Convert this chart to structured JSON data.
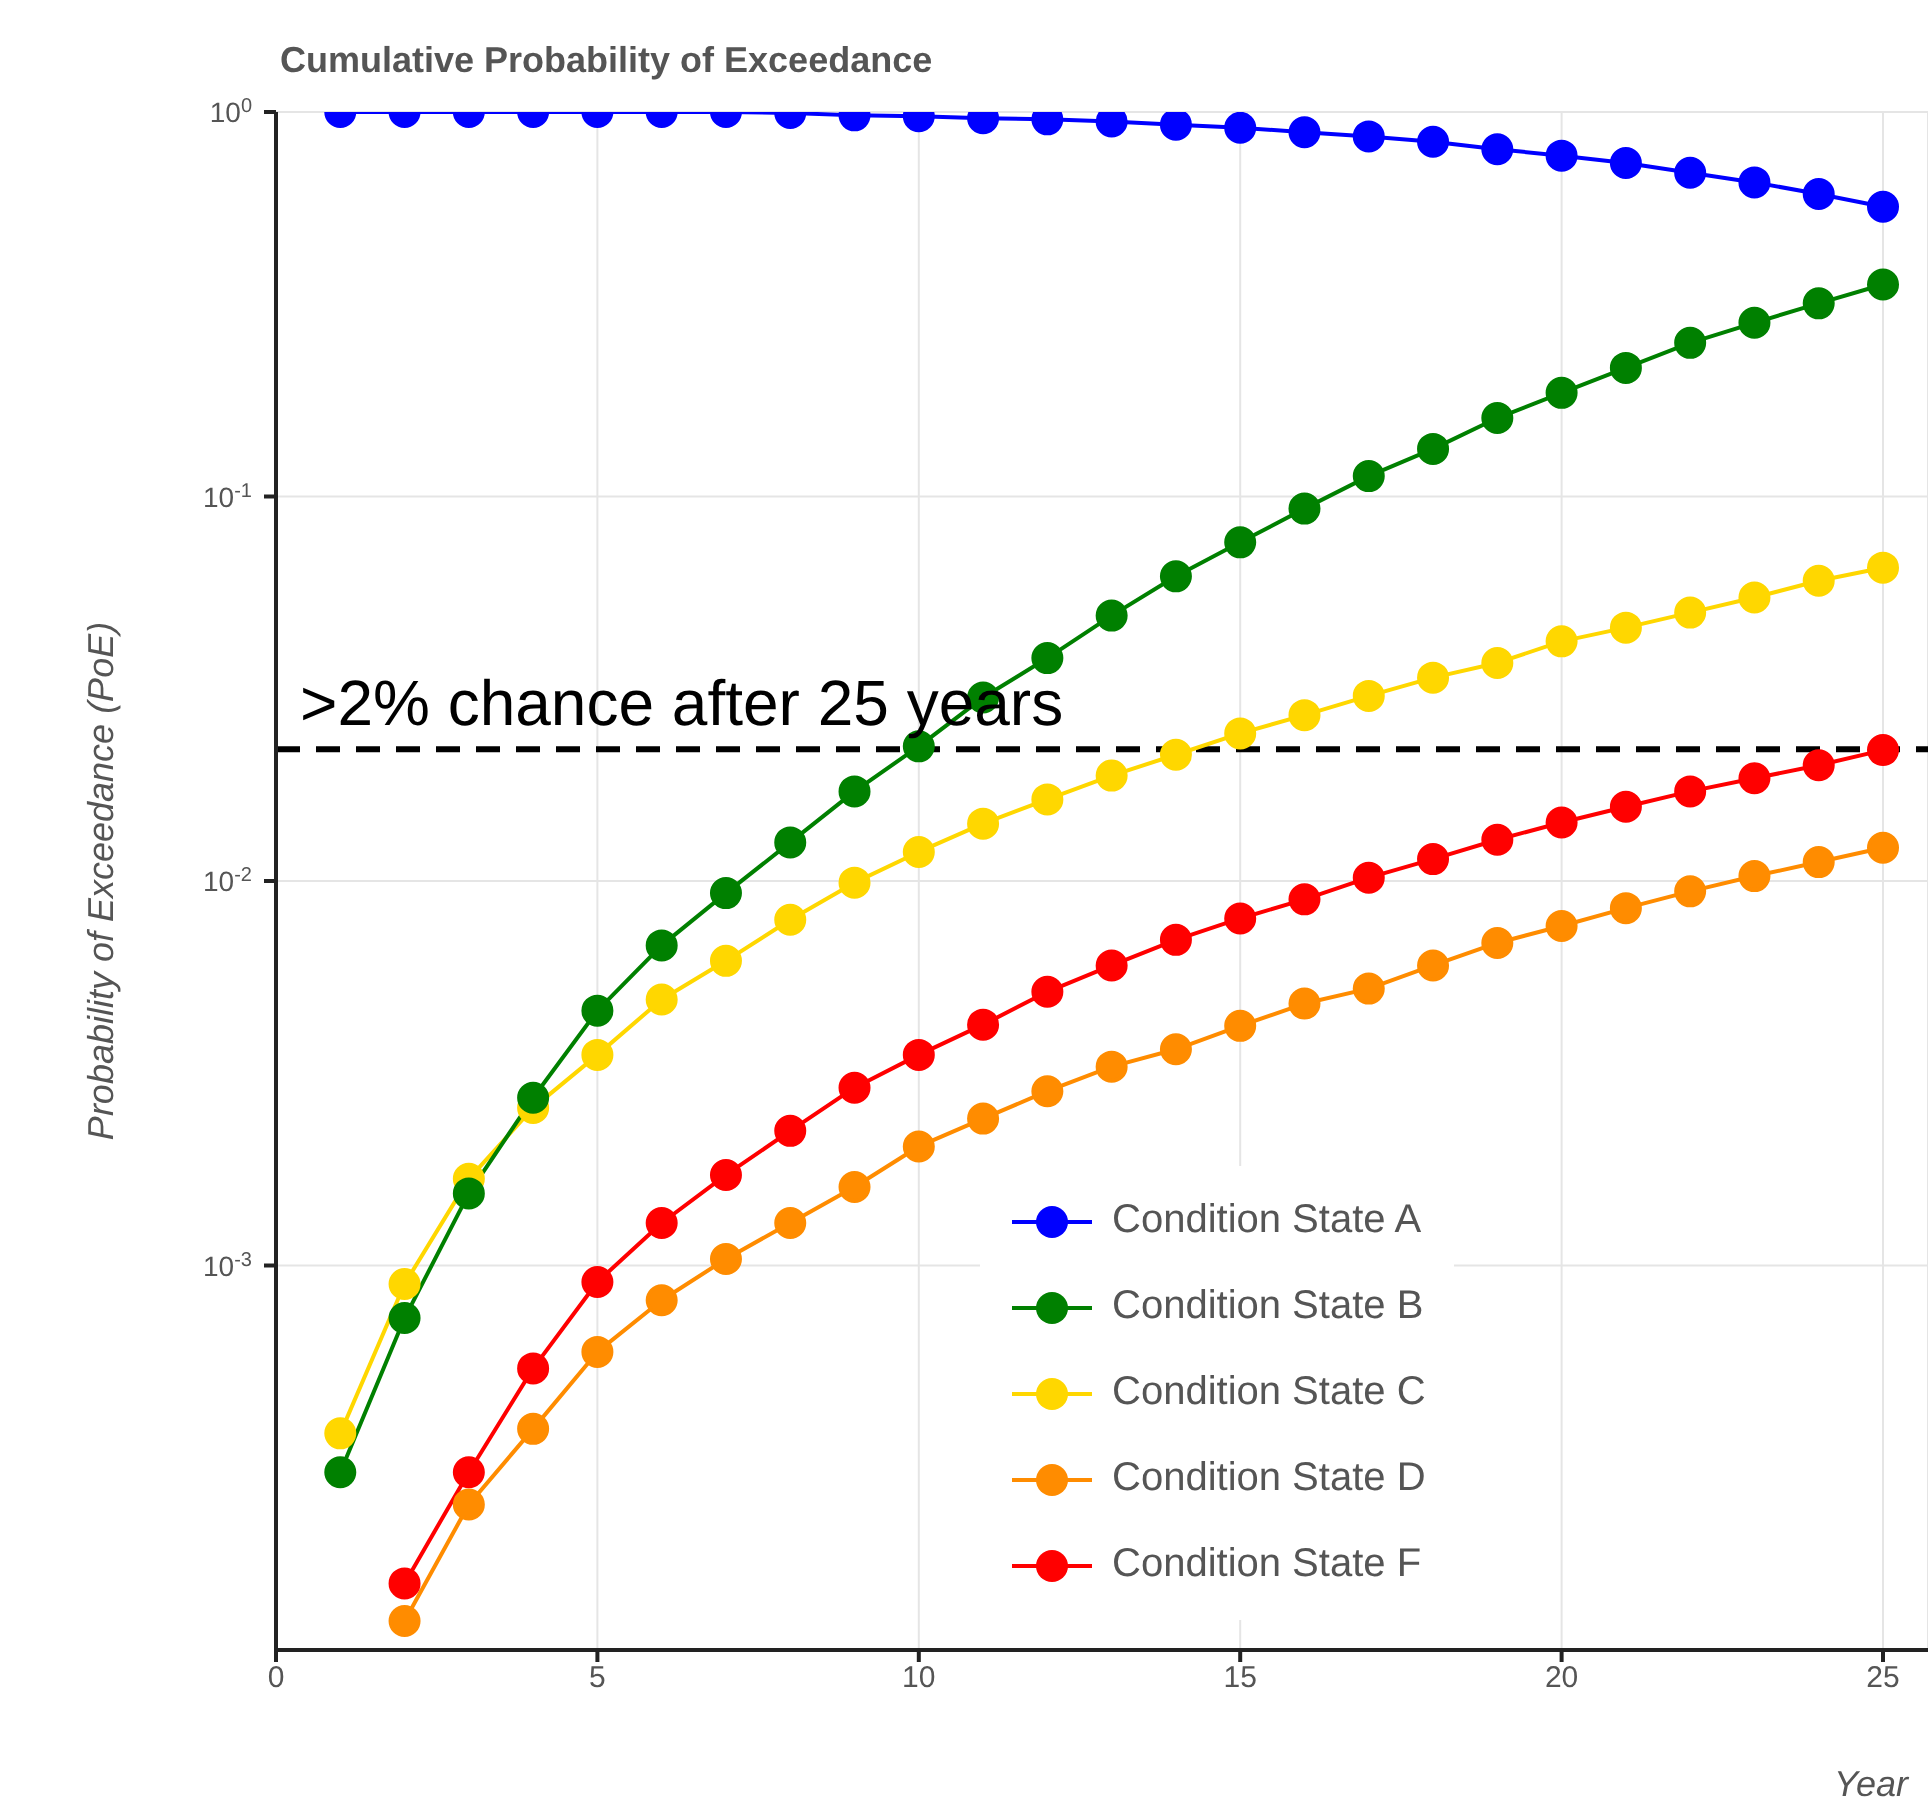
{
  "chart_data": {
    "type": "line",
    "title": "Cumulative Probability of Exceedance",
    "xlabel": "Year",
    "ylabel": "Probability of Exceedance (PoE)",
    "x": [
      1,
      2,
      3,
      4,
      5,
      6,
      7,
      8,
      9,
      10,
      11,
      12,
      13,
      14,
      15,
      16,
      17,
      18,
      19,
      20,
      21,
      22,
      23,
      24,
      25
    ],
    "series": [
      {
        "name": "Condition State A",
        "color": "#0000ff",
        "values": [
          1.0,
          1.0,
          1.0,
          1.0,
          1.0,
          1.0,
          1.0,
          0.994,
          0.98,
          0.975,
          0.963,
          0.957,
          0.945,
          0.927,
          0.91,
          0.886,
          0.864,
          0.837,
          0.8,
          0.77,
          0.737,
          0.695,
          0.656,
          0.612,
          0.567
        ]
      },
      {
        "name": "Condition State B",
        "color": "#008000",
        "values": [
          0.00029,
          0.00073,
          0.00154,
          0.00273,
          0.0046,
          0.0068,
          0.0093,
          0.0126,
          0.0171,
          0.0224,
          0.03,
          0.038,
          0.049,
          0.062,
          0.076,
          0.093,
          0.113,
          0.133,
          0.16,
          0.186,
          0.216,
          0.251,
          0.283,
          0.318,
          0.356
        ]
      },
      {
        "name": "Condition State C",
        "color": "#ffd700",
        "values": [
          0.000366,
          0.000895,
          0.00168,
          0.00257,
          0.00353,
          0.00492,
          0.0062,
          0.00793,
          0.0099,
          0.0119,
          0.0141,
          0.0163,
          0.0188,
          0.0213,
          0.0242,
          0.027,
          0.0303,
          0.0338,
          0.0369,
          0.042,
          0.0456,
          0.0499,
          0.0546,
          0.0604,
          0.0653
        ]
      },
      {
        "name": "Condition State D",
        "color": "#ff8c00",
        "values": [
          null,
          0.000119,
          0.000239,
          0.000376,
          0.000596,
          0.000812,
          0.00104,
          0.00129,
          0.0016,
          0.00204,
          0.00241,
          0.00284,
          0.00329,
          0.00365,
          0.0042,
          0.0048,
          0.00525,
          0.00603,
          0.0069,
          0.00764,
          0.0085,
          0.0094,
          0.0103,
          0.0112,
          0.0122
        ]
      },
      {
        "name": "Condition State F",
        "color": "#ff0000",
        "values": [
          null,
          0.000149,
          0.00029,
          0.00054,
          0.000906,
          0.00129,
          0.00172,
          0.00224,
          0.0029,
          0.00353,
          0.00423,
          0.00515,
          0.00603,
          0.00703,
          0.00799,
          0.00896,
          0.0102,
          0.0114,
          0.0128,
          0.0142,
          0.0156,
          0.0171,
          0.0185,
          0.02,
          0.0219
        ]
      }
    ],
    "xlim": [
      0,
      25.7
    ],
    "xticks": [
      0,
      5,
      10,
      15,
      20,
      25
    ],
    "ylim": [
      0.0001,
      1
    ],
    "yticks": [
      {
        "value": 1,
        "label": "10$^{0}$"
      },
      {
        "value": 0.1,
        "label": "10$^{-1}$"
      },
      {
        "value": 0.01,
        "label": "10$^{-2}$"
      },
      {
        "value": 0.001,
        "label": "10$^{-3}$"
      }
    ],
    "log": "y",
    "grid": true,
    "legend": "bottom",
    "marker": "circle",
    "line_style": "solid",
    "ref_lines": [
      {
        "axis": "y",
        "value": 0.022,
        "label": ">2% chance after 25 years",
        "color": "#000000",
        "line_style": "dashed"
      }
    ]
  }
}
